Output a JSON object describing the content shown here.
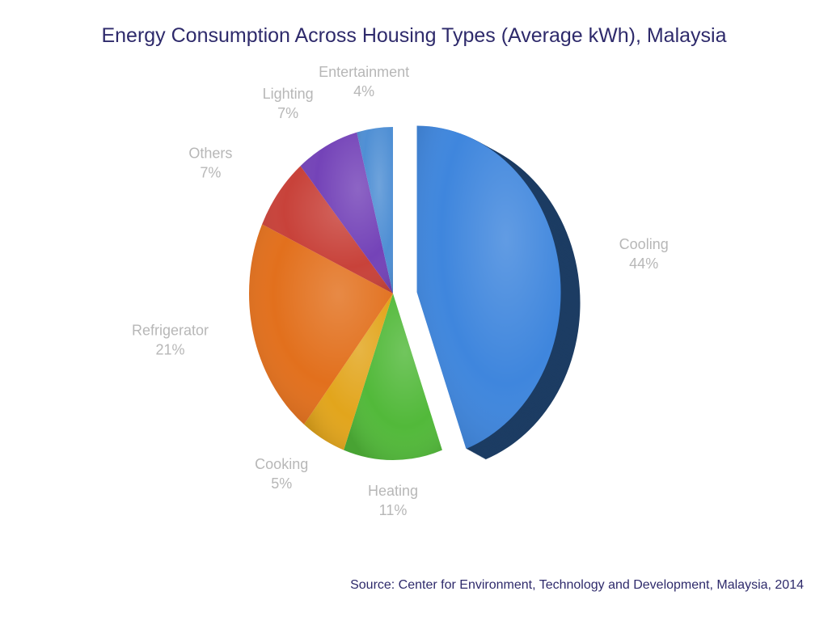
{
  "title": "Energy Consumption Across Housing Types (Average kWh), Malaysia",
  "source": "Source: Center for Environment, Technology and Development, Malaysia, 2014",
  "chart_data": {
    "type": "pie",
    "title": "Energy Consumption Across Housing Types (Average kWh), Malaysia",
    "unit": "%",
    "legend": "none",
    "slices": [
      {
        "label": "Cooling",
        "value": 44,
        "display": "44%",
        "color": "#3f86dd"
      },
      {
        "label": "Heating",
        "value": 11,
        "display": "11%",
        "color": "#52b93a"
      },
      {
        "label": "Cooking",
        "value": 5,
        "display": "5%",
        "color": "#e2a51c"
      },
      {
        "label": "Refrigerator",
        "value": 21,
        "display": "21%",
        "color": "#e2701d"
      },
      {
        "label": "Others",
        "value": 7,
        "display": "7%",
        "color": "#c8423a"
      },
      {
        "label": "Lighting",
        "value": 7,
        "display": "7%",
        "color": "#7443b8"
      },
      {
        "label": "Entertainment",
        "value": 4,
        "display": "4%",
        "color": "#4f8fd4"
      }
    ]
  }
}
